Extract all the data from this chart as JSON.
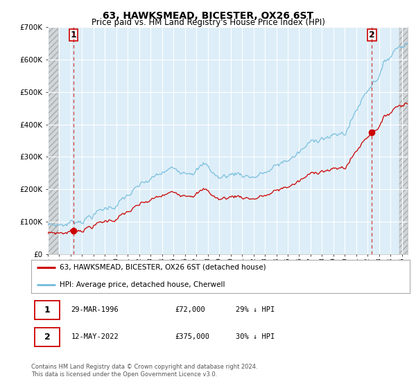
{
  "title": "63, HAWKSMEAD, BICESTER, OX26 6ST",
  "subtitle": "Price paid vs. HM Land Registry's House Price Index (HPI)",
  "ylim": [
    0,
    700000
  ],
  "yticks": [
    0,
    100000,
    200000,
    300000,
    400000,
    500000,
    600000,
    700000
  ],
  "ytick_labels": [
    "£0",
    "£100K",
    "£200K",
    "£300K",
    "£400K",
    "£500K",
    "£600K",
    "£700K"
  ],
  "xlim_start": 1994.0,
  "xlim_end": 2025.5,
  "hpi_color": "#7bbfde",
  "price_color": "#cc0000",
  "marker1_year": 1996.24,
  "marker1_value": 72000,
  "marker2_year": 2022.37,
  "marker2_value": 375000,
  "legend_line1": "63, HAWKSMEAD, BICESTER, OX26 6ST (detached house)",
  "legend_line2": "HPI: Average price, detached house, Cherwell",
  "footnote": "Contains HM Land Registry data © Crown copyright and database right 2024.\nThis data is licensed under the Open Government Licence v3.0.",
  "plot_bg_color": "#ddeef8",
  "grid_color": "#ffffff",
  "hatch_color": "#c8c8c8"
}
